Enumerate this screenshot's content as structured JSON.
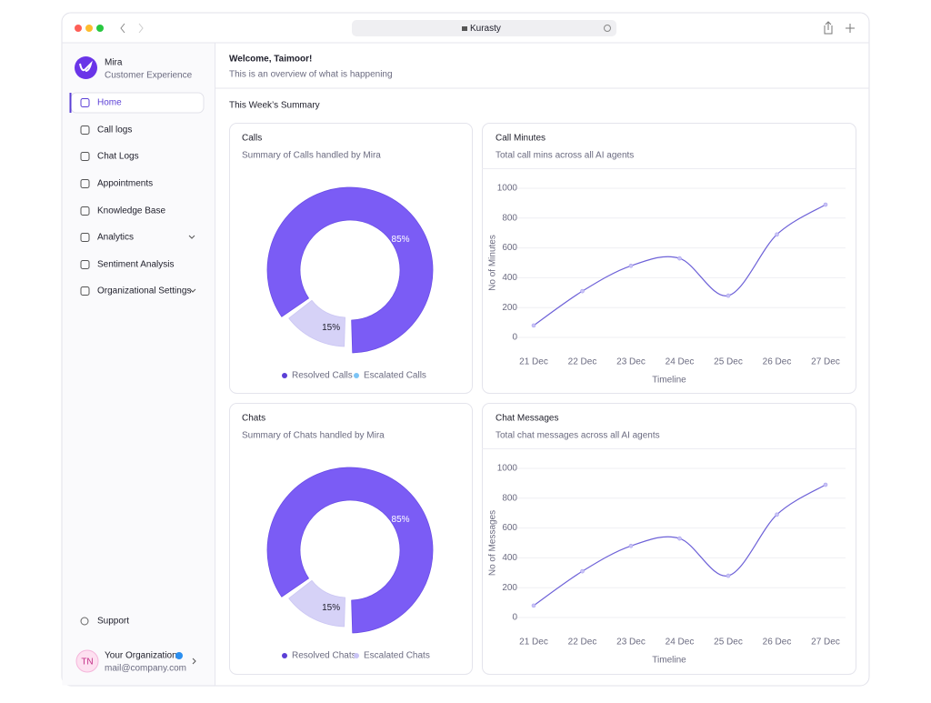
{
  "browser": {
    "url": "Kurasty"
  },
  "sidebar": {
    "brand": {
      "name": "Mira",
      "subtitle": "Customer Experience"
    },
    "nav": [
      "Home",
      "Call logs",
      "Chat Logs",
      "Appointments",
      "Knowledge Base",
      "Analytics",
      "Sentiment Analysis",
      "Organizational Settings"
    ],
    "support": "Support",
    "account": {
      "initials": "TN",
      "name": "Your Organization",
      "email": "mail@company.com"
    }
  },
  "header": {
    "title": "Welcome, Taimoor!",
    "subtitle": "This is an overview of what is happening"
  },
  "section_title": "This Week’s Summary",
  "chart_data": [
    {
      "type": "pie",
      "title": "Calls",
      "subtitle": "Summary of Calls handled by Mira",
      "categories": [
        "Resolved Calls",
        "Escalated Calls"
      ],
      "values": [
        85,
        15
      ],
      "value_labels": [
        "85%",
        "15%"
      ],
      "colors": [
        "#7b5cf5",
        "#d6d2f7"
      ],
      "legend_colors": [
        "#5b3fd6",
        "#7cc4f5"
      ]
    },
    {
      "type": "line",
      "title": "Call Minutes",
      "subtitle": "Total call mins across all AI agents",
      "categories": [
        "21 Dec",
        "22 Dec",
        "23 Dec",
        "24 Dec",
        "25 Dec",
        "26 Dec",
        "27 Dec"
      ],
      "values": [
        80,
        310,
        480,
        530,
        280,
        690,
        890
      ],
      "color": "#6e62d8",
      "ylim": [
        0,
        1000
      ],
      "yticks": [
        0,
        200,
        400,
        600,
        800,
        1000
      ],
      "ylabel": "No of Minutes",
      "xlabel": "Timeline",
      "grid": true
    },
    {
      "type": "pie",
      "title": "Chats",
      "subtitle": "Summary of Chats handled by Mira",
      "categories": [
        "Resolved Chats",
        "Escalated Chats"
      ],
      "values": [
        85,
        15
      ],
      "value_labels": [
        "85%",
        "15%"
      ],
      "colors": [
        "#7b5cf5",
        "#d6d2f7"
      ],
      "legend_colors": [
        "#5b3fd6",
        "#c9c4f5"
      ]
    },
    {
      "type": "line",
      "title": "Chat Messages",
      "subtitle": "Total chat messages across all AI agents",
      "categories": [
        "21 Dec",
        "22 Dec",
        "23 Dec",
        "24 Dec",
        "25 Dec",
        "26 Dec",
        "27 Dec"
      ],
      "values": [
        80,
        310,
        480,
        530,
        280,
        690,
        890
      ],
      "color": "#6e62d8",
      "ylim": [
        0,
        1000
      ],
      "yticks": [
        0,
        200,
        400,
        600,
        800,
        1000
      ],
      "ylabel": "No of Messages",
      "xlabel": "Timeline",
      "grid": true
    }
  ]
}
